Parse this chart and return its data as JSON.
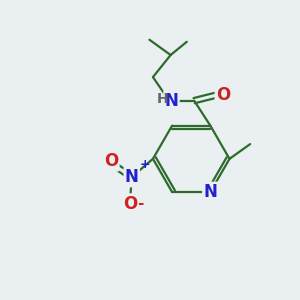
{
  "background_color": "#eaeff1",
  "bond_color": "#2d6b2d",
  "atom_colors": {
    "N": "#2222cc",
    "O": "#cc2222",
    "H": "#666666"
  },
  "figsize": [
    3.0,
    3.0
  ],
  "dpi": 100
}
